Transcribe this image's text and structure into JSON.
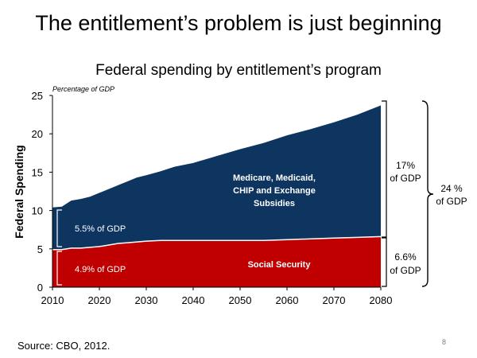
{
  "slide": {
    "title": "The entitlement’s problem is just beginning",
    "source": "Source: CBO, 2012.",
    "page_number": "8"
  },
  "chart_data": {
    "type": "area",
    "stacked": true,
    "title": "Federal spending by entitlement’s program",
    "unit_note": "Percentage of GDP",
    "xlabel": "",
    "ylabel": "Federal Spending",
    "xlim": [
      2010,
      2080
    ],
    "ylim": [
      0,
      25
    ],
    "xticks": [
      2010,
      2020,
      2030,
      2040,
      2050,
      2060,
      2070,
      2080
    ],
    "yticks": [
      0,
      5,
      10,
      15,
      20,
      25
    ],
    "grid": false,
    "x": [
      2010,
      2012,
      2014,
      2016,
      2018,
      2020,
      2022,
      2024,
      2026,
      2028,
      2030,
      2033,
      2036,
      2040,
      2045,
      2050,
      2055,
      2060,
      2065,
      2070,
      2075,
      2080
    ],
    "series": [
      {
        "name": "Social Security",
        "color": "#c00000",
        "values": [
          4.9,
          4.9,
          5.1,
          5.1,
          5.2,
          5.3,
          5.5,
          5.7,
          5.8,
          5.9,
          6.0,
          6.1,
          6.1,
          6.1,
          6.1,
          6.1,
          6.1,
          6.2,
          6.3,
          6.4,
          6.5,
          6.6
        ]
      },
      {
        "name": "Medicare, Medicaid, CHIP and Exchange Subsidies",
        "color": "#0d3560",
        "values": [
          5.5,
          5.6,
          6.2,
          6.4,
          6.6,
          7.0,
          7.3,
          7.6,
          8.0,
          8.4,
          8.6,
          9.0,
          9.6,
          10.1,
          11.0,
          11.9,
          12.7,
          13.6,
          14.3,
          15.1,
          16.0,
          17.1
        ]
      }
    ],
    "annotations": {
      "ss_label": "Social Security",
      "health_label_lines": [
        "Medicare, Medicaid,",
        "CHIP and Exchange",
        "Subsidies"
      ],
      "start_ss": "4.9% of GDP",
      "start_health": "5.5% of GDP",
      "end_health_lines": [
        "17%",
        "of GDP"
      ],
      "end_ss_lines": [
        "6.6%",
        "of GDP"
      ],
      "total_lines": [
        "24 %",
        "of GDP"
      ]
    }
  }
}
